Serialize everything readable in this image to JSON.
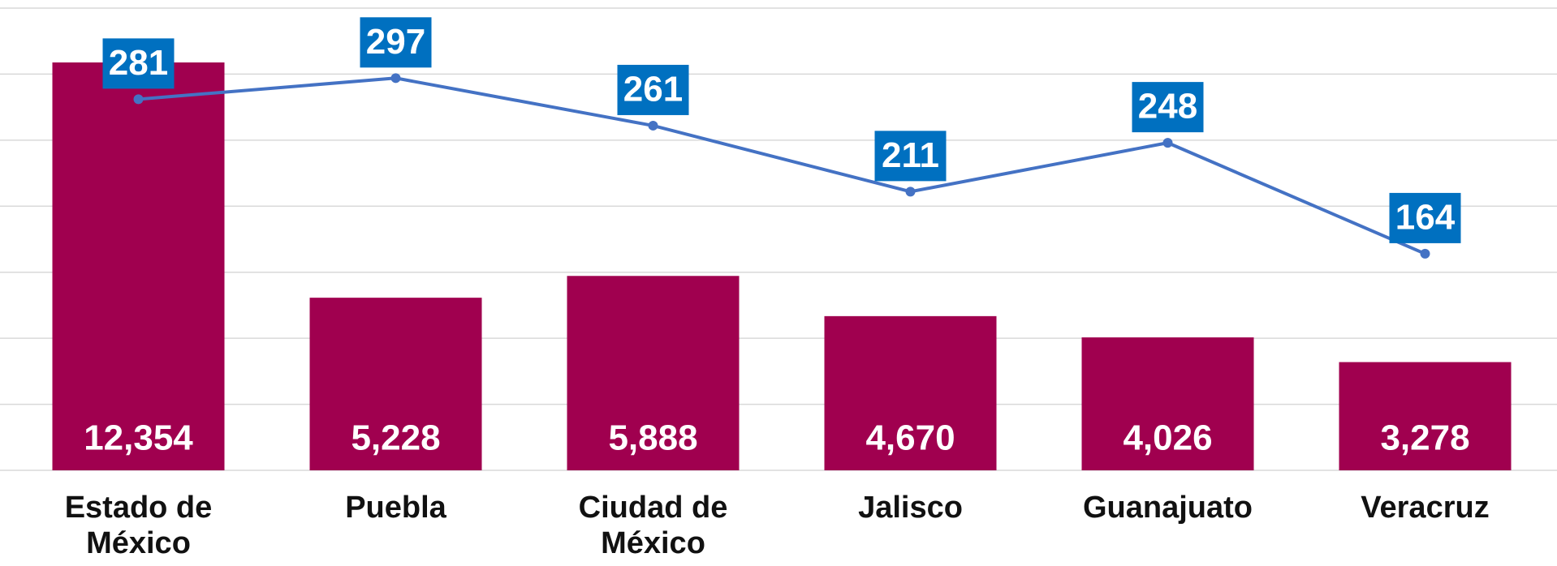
{
  "chart_data": {
    "type": "bar",
    "categories": [
      "Estado de México",
      "Puebla",
      "Ciudad de México",
      "Jalisco",
      "Guanajuato",
      "Veracruz"
    ],
    "series": [
      {
        "type": "bar",
        "color": "#a0004f",
        "values": [
          12354,
          5228,
          5888,
          4670,
          4026,
          3278
        ],
        "value_labels": [
          "12,354",
          "5,228",
          "5,888",
          "4,670",
          "4,026",
          "3,278"
        ]
      },
      {
        "type": "line",
        "axis": "y2",
        "color": "#4472c4",
        "label_color": "#0070c0",
        "values": [
          281,
          297,
          261,
          211,
          248,
          164
        ]
      }
    ],
    "ylim": [
      0,
      14000
    ],
    "yticks": [
      0,
      2000,
      4000,
      6000,
      8000,
      10000,
      12000,
      14000
    ],
    "y2lim": [
      0,
      350
    ],
    "grid": true
  }
}
